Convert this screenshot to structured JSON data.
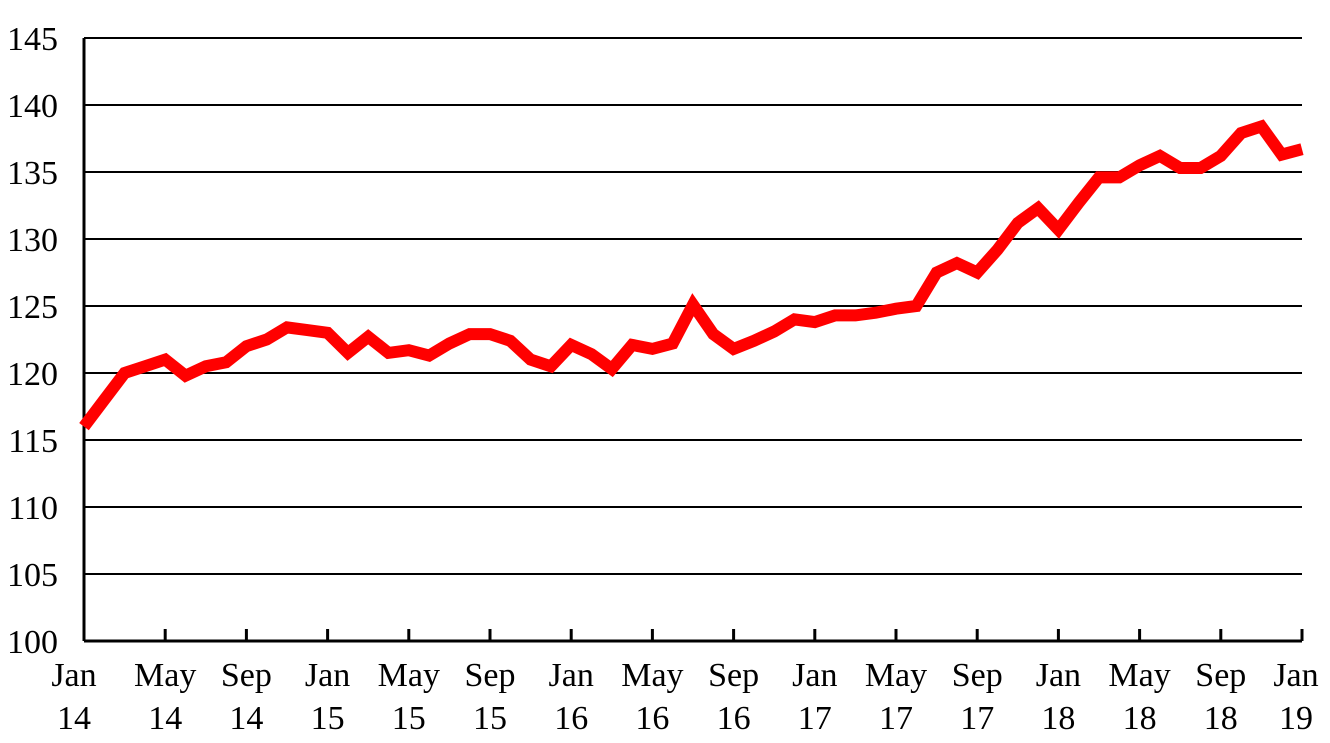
{
  "chart_data": {
    "type": "line",
    "title": "",
    "xlabel": "",
    "ylabel": "",
    "ylim": [
      100,
      145
    ],
    "yticks": [
      100,
      105,
      110,
      115,
      120,
      125,
      130,
      135,
      140,
      145
    ],
    "x_tick_labels": [
      {
        "month": "Jan",
        "year": "14"
      },
      {
        "month": "May",
        "year": "14"
      },
      {
        "month": "Sep",
        "year": "14"
      },
      {
        "month": "Jan",
        "year": "15"
      },
      {
        "month": "May",
        "year": "15"
      },
      {
        "month": "Sep",
        "year": "15"
      },
      {
        "month": "Jan",
        "year": "16"
      },
      {
        "month": "May",
        "year": "16"
      },
      {
        "month": "Sep",
        "year": "16"
      },
      {
        "month": "Jan",
        "year": "17"
      },
      {
        "month": "May",
        "year": "17"
      },
      {
        "month": "Sep",
        "year": "17"
      },
      {
        "month": "Jan",
        "year": "18"
      },
      {
        "month": "May",
        "year": "18"
      },
      {
        "month": "Sep",
        "year": "18"
      },
      {
        "month": "Jan",
        "year": "19"
      }
    ],
    "grid": true,
    "series_color": "#ff0000",
    "series": [
      {
        "x": [
          "2014-01",
          "2014-02",
          "2014-03",
          "2014-04",
          "2014-05",
          "2014-06",
          "2014-07",
          "2014-08",
          "2014-09",
          "2014-10",
          "2014-11",
          "2014-12",
          "2015-01",
          "2015-02",
          "2015-03",
          "2015-04",
          "2015-05",
          "2015-06",
          "2015-07",
          "2015-08",
          "2015-09",
          "2015-10",
          "2015-11",
          "2015-12",
          "2016-01",
          "2016-02",
          "2016-03",
          "2016-04",
          "2016-05",
          "2016-06",
          "2016-07",
          "2016-08",
          "2016-09",
          "2016-10",
          "2016-11",
          "2016-12",
          "2017-01",
          "2017-02",
          "2017-03",
          "2017-04",
          "2017-05",
          "2017-06",
          "2017-07",
          "2017-08",
          "2017-09",
          "2017-10",
          "2017-11",
          "2017-12",
          "2018-01",
          "2018-02",
          "2018-03",
          "2018-04",
          "2018-05",
          "2018-06",
          "2018-07",
          "2018-08",
          "2018-09",
          "2018-10",
          "2018-11",
          "2018-12",
          "2019-01"
        ],
        "values": [
          116.0,
          118.0,
          120.0,
          120.5,
          121.0,
          119.8,
          120.5,
          120.8,
          122.0,
          122.5,
          123.4,
          123.2,
          123.0,
          121.5,
          122.7,
          121.5,
          121.7,
          121.3,
          122.2,
          122.9,
          122.9,
          122.4,
          121.0,
          120.5,
          122.1,
          121.4,
          120.3,
          122.1,
          121.8,
          122.2,
          125.1,
          122.9,
          121.8,
          122.4,
          123.1,
          124.0,
          123.8,
          124.3,
          124.3,
          124.5,
          124.8,
          125.0,
          127.5,
          128.2,
          127.5,
          129.2,
          131.2,
          132.3,
          130.7,
          132.7,
          134.6,
          134.6,
          135.5,
          136.2,
          135.3,
          135.3,
          136.2,
          137.9,
          138.4,
          136.3,
          136.7
        ]
      }
    ]
  }
}
